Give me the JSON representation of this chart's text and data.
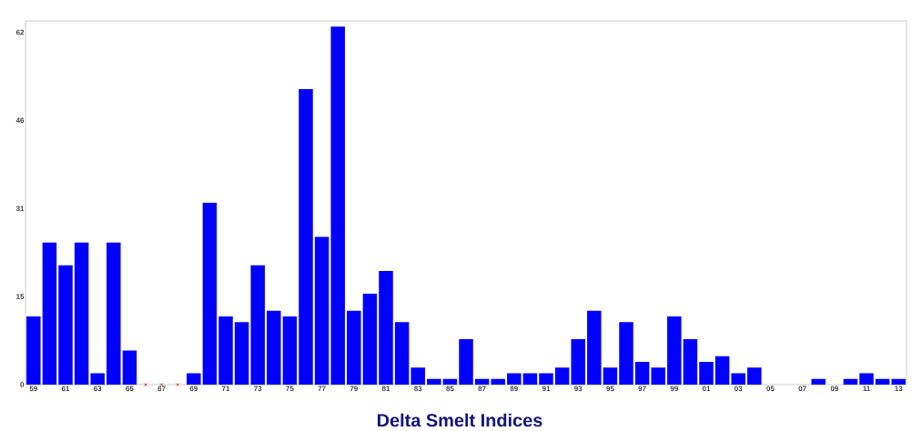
{
  "chart_data": {
    "type": "bar",
    "title": "Delta Smelt Indices",
    "categories": [
      "59",
      null,
      "61",
      null,
      "63",
      null,
      "65",
      null,
      "67",
      null,
      "69",
      null,
      "71",
      null,
      "73",
      null,
      "75",
      null,
      "77",
      null,
      "79",
      null,
      "81",
      null,
      "83",
      null,
      "85",
      null,
      "87",
      null,
      "89",
      null,
      "91",
      null,
      "93",
      null,
      "95",
      null,
      "97",
      null,
      "99",
      null,
      "01",
      null,
      "03",
      null,
      "05",
      null,
      "07",
      null,
      "09",
      null,
      "11",
      null,
      "13"
    ],
    "series": [
      {
        "color": "#0000ff",
        "values": [
          12,
          25,
          21,
          25,
          2,
          25,
          6,
          null,
          null,
          null,
          2,
          32,
          12,
          11,
          21,
          13,
          12,
          52,
          26,
          63,
          13,
          16,
          20,
          11,
          3,
          1,
          1,
          8,
          1,
          1,
          2,
          2,
          2,
          3,
          8,
          13,
          3,
          11,
          4,
          3,
          12,
          8,
          4,
          5,
          2,
          3,
          0,
          0,
          0,
          1,
          0,
          1,
          2,
          1,
          1
        ]
      },
      {
        "type": "scatter",
        "color": "#cc0000",
        "marker": "cross",
        "values": [
          null,
          null,
          null,
          null,
          null,
          null,
          null,
          0,
          0,
          0,
          null,
          null,
          null,
          null,
          null,
          null,
          null,
          null,
          null,
          null,
          null,
          null,
          null,
          null,
          null,
          null,
          null,
          null,
          null,
          null,
          null,
          null,
          null,
          null,
          null,
          null,
          null,
          null,
          null,
          null,
          null,
          null,
          null,
          null,
          null,
          null,
          null,
          null,
          null,
          null,
          null,
          null,
          null,
          null,
          null
        ]
      }
    ],
    "ylim": [
      0,
      64
    ],
    "yticks": [
      0,
      {
        "value": 15.5,
        "label": "15"
      },
      31,
      {
        "value": 46.5,
        "label": "46"
      },
      62
    ],
    "grid": false
  }
}
